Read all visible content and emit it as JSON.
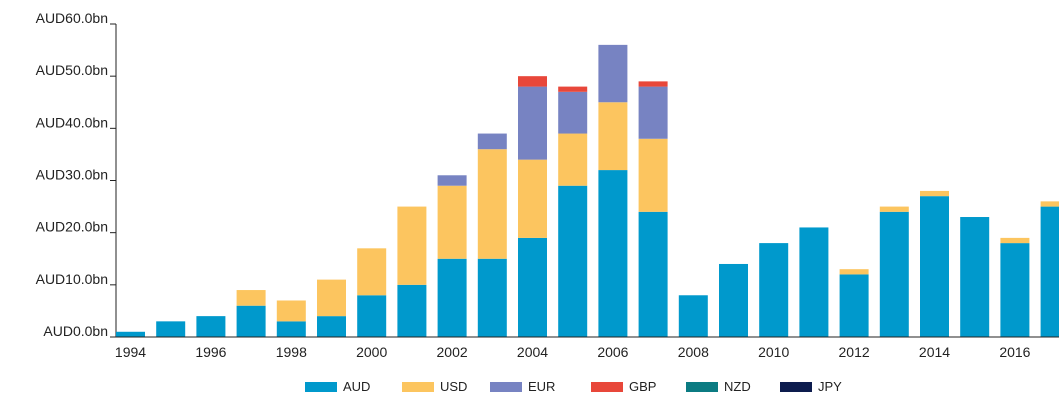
{
  "chart_data": {
    "type": "bar",
    "stacked": true,
    "title": "",
    "xlabel": "",
    "ylabel": "",
    "ylim": [
      0,
      60
    ],
    "y_ticks": [
      {
        "value": 0,
        "label": "AUD0.0bn"
      },
      {
        "value": 10,
        "label": "AUD10.0bn"
      },
      {
        "value": 20,
        "label": "AUD20.0bn"
      },
      {
        "value": 30,
        "label": "AUD30.0bn"
      },
      {
        "value": 40,
        "label": "AUD40.0bn"
      },
      {
        "value": 50,
        "label": "AUD50.0bn"
      },
      {
        "value": 60,
        "label": "AUD60.0bn"
      }
    ],
    "categories": [
      "1994",
      "1995",
      "1996",
      "1997",
      "1998",
      "1999",
      "2000",
      "2001",
      "2002",
      "2003",
      "2004",
      "2005",
      "2006",
      "2007",
      "2008",
      "2009",
      "2010",
      "2011",
      "2012",
      "2013",
      "2014",
      "2015",
      "2016",
      "2017"
    ],
    "x_tick_labels": [
      "1994",
      "1996",
      "1998",
      "2000",
      "2002",
      "2004",
      "2006",
      "2008",
      "2010",
      "2012",
      "2014",
      "2016"
    ],
    "grid": false,
    "legend_position": "bottom",
    "series": [
      {
        "name": "AUD",
        "color": "#0099cc",
        "values": [
          1,
          3,
          4,
          6,
          3,
          4,
          8,
          10,
          15,
          15,
          19,
          29,
          32,
          24,
          8,
          14,
          18,
          21,
          12,
          24,
          27,
          23,
          18,
          25
        ]
      },
      {
        "name": "USD",
        "color": "#fcc55f",
        "values": [
          0,
          0,
          0,
          3,
          4,
          7,
          9,
          15,
          14,
          21,
          15,
          10,
          13,
          14,
          0,
          0,
          0,
          0,
          1,
          1,
          1,
          0,
          1,
          1
        ]
      },
      {
        "name": "EUR",
        "color": "#7783c2",
        "values": [
          0,
          0,
          0,
          0,
          0,
          0,
          0,
          0,
          2,
          3,
          14,
          8,
          11,
          10,
          0,
          0,
          0,
          0,
          0,
          0,
          0,
          0,
          0,
          0
        ]
      },
      {
        "name": "GBP",
        "color": "#e8473a",
        "values": [
          0,
          0,
          0,
          0,
          0,
          0,
          0,
          0,
          0,
          0,
          2,
          1,
          0,
          1,
          0,
          0,
          0,
          0,
          0,
          0,
          0,
          0,
          0,
          0
        ]
      },
      {
        "name": "NZD",
        "color": "#0b7b82",
        "values": [
          0,
          0,
          0,
          0,
          0,
          0,
          0,
          0,
          0,
          0,
          0,
          0,
          0,
          0,
          0,
          0,
          0,
          0,
          0,
          0,
          0,
          0,
          0,
          0
        ]
      },
      {
        "name": "JPY",
        "color": "#0d1c4e",
        "values": [
          0,
          0,
          0,
          0,
          0,
          0,
          0,
          0,
          0,
          0,
          0,
          0,
          0,
          0,
          0,
          0,
          0,
          0,
          0,
          0,
          0,
          0,
          0,
          0
        ]
      }
    ]
  }
}
